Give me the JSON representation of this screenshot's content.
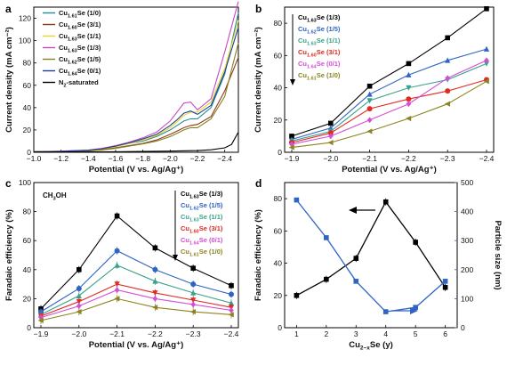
{
  "colors": {
    "black": "#000000",
    "teal": "#2a8a92",
    "darkteal": "#1f6f78",
    "blue": "#2a56b0",
    "yellow": "#e8d52c",
    "magenta": "#c948c8",
    "olive": "#8a7d1a",
    "navy": "#1a3f96",
    "lightblue": "#3f8ed0",
    "red": "#e02a22",
    "green": "#3aa28a",
    "purple": "#d44ed8",
    "khaki": "#8b8420",
    "dblue": "#2f63c4"
  },
  "chart_data": [
    {
      "panel": "a",
      "type": "line",
      "xlabel": "Potential (V vs. Ag/Ag⁺)",
      "ylabel": "Current density (mA cm⁻²)",
      "xlim": [
        -1.0,
        -2.5
      ],
      "ylim": [
        0,
        130
      ],
      "xticks": [
        "−1.0",
        "−1.2",
        "−1.4",
        "−1.6",
        "−1.8",
        "−2.0",
        "−2.2",
        "−2.4"
      ],
      "xtick_values": [
        -1.0,
        -1.2,
        -1.4,
        -1.6,
        -1.8,
        -2.0,
        -2.2,
        -2.4
      ],
      "yticks": [
        "0",
        "20",
        "40",
        "60",
        "80",
        "100",
        "120"
      ],
      "ytick_values": [
        0,
        20,
        40,
        60,
        80,
        100,
        120
      ],
      "legend": [
        {
          "base": "Cu",
          "sub": "1.61",
          "rest": "Se (1/0)",
          "color": "#2a8a92"
        },
        {
          "base": "Cu",
          "sub": "1.60",
          "rest": "Se (3/1)",
          "color": "#8a3a1a"
        },
        {
          "base": "Cu",
          "sub": "1.63",
          "rest": "Se (1/1)",
          "color": "#e8d52c"
        },
        {
          "base": "Cu",
          "sub": "1.63",
          "rest": "Se (1/3)",
          "color": "#c948c8"
        },
        {
          "base": "Cu",
          "sub": "1.62",
          "rest": "Se (1/5)",
          "color": "#8a7d1a"
        },
        {
          "base": "Cu",
          "sub": "1.64",
          "rest": "Se (0/1)",
          "color": "#1a3f96"
        },
        {
          "base": "N",
          "sub": "2",
          "rest": "-saturated",
          "color": "#000000"
        }
      ],
      "series": [
        {
          "color": "#2a8a92",
          "x": [
            -1.0,
            -1.2,
            -1.4,
            -1.5,
            -1.6,
            -1.7,
            -1.8,
            -1.9,
            -2.0,
            -2.05,
            -2.1,
            -2.15,
            -2.2,
            -2.3,
            -2.4,
            -2.5
          ],
          "y": [
            0.5,
            0.8,
            1.5,
            3,
            5,
            8,
            10,
            14,
            20,
            24,
            28,
            30,
            30,
            40,
            70,
            125
          ]
        },
        {
          "color": "#8a3a1a",
          "x": [
            -1.0,
            -1.2,
            -1.4,
            -1.5,
            -1.6,
            -1.7,
            -1.8,
            -1.9,
            -2.0,
            -2.05,
            -2.1,
            -2.15,
            -2.2,
            -2.3,
            -2.4,
            -2.5
          ],
          "y": [
            0.5,
            0.8,
            1.3,
            2.5,
            4,
            6,
            8,
            11,
            16,
            19,
            22,
            24,
            25,
            32,
            55,
            85
          ]
        },
        {
          "color": "#e8d52c",
          "x": [
            -1.0,
            -1.2,
            -1.4,
            -1.5,
            -1.6,
            -1.7,
            -1.8,
            -1.9,
            -2.0,
            -2.05,
            -2.1,
            -2.15,
            -2.2,
            -2.3,
            -2.4,
            -2.5
          ],
          "y": [
            0.5,
            0.9,
            1.7,
            3,
            5,
            8,
            11,
            15,
            22,
            27,
            33,
            36,
            36,
            45,
            75,
            118
          ]
        },
        {
          "color": "#c948c8",
          "x": [
            -1.0,
            -1.2,
            -1.4,
            -1.5,
            -1.6,
            -1.7,
            -1.8,
            -1.9,
            -2.0,
            -2.05,
            -2.1,
            -2.15,
            -2.2,
            -2.3,
            -2.4,
            -2.5
          ],
          "y": [
            0.5,
            1.0,
            2,
            3.5,
            6,
            9,
            13,
            18,
            28,
            36,
            44,
            45,
            38,
            48,
            90,
            135
          ]
        },
        {
          "color": "#8a7d1a",
          "x": [
            -1.0,
            -1.2,
            -1.4,
            -1.5,
            -1.6,
            -1.7,
            -1.8,
            -1.9,
            -2.0,
            -2.05,
            -2.1,
            -2.15,
            -2.2,
            -2.3,
            -2.4,
            -2.5
          ],
          "y": [
            0.5,
            0.7,
            1.2,
            2,
            3.5,
            5.5,
            7.5,
            10,
            14,
            17,
            20,
            22,
            22,
            30,
            50,
            98
          ]
        },
        {
          "color": "#1a3f96",
          "x": [
            -1.0,
            -1.2,
            -1.4,
            -1.5,
            -1.6,
            -1.7,
            -1.8,
            -1.9,
            -2.0,
            -2.05,
            -2.1,
            -2.15,
            -2.2,
            -2.3,
            -2.4,
            -2.5
          ],
          "y": [
            0.5,
            0.9,
            1.8,
            3.2,
            5.5,
            8.5,
            12,
            16,
            24,
            29,
            35,
            37,
            34,
            42,
            72,
            112
          ]
        },
        {
          "color": "#000000",
          "x": [
            -1.0,
            -1.2,
            -1.4,
            -1.6,
            -1.8,
            -2.0,
            -2.2,
            -2.3,
            -2.4,
            -2.45,
            -2.5
          ],
          "y": [
            0.2,
            0.3,
            0.4,
            0.5,
            0.7,
            1.0,
            1.5,
            2.2,
            4,
            7,
            18
          ]
        }
      ]
    },
    {
      "panel": "b",
      "type": "line",
      "xlabel": "Potential (V vs. Ag/Ag⁺)",
      "ylabel": "Current density (mA cm⁻²)",
      "xlim": [
        -1.9,
        -2.4
      ],
      "ylim": [
        0,
        90
      ],
      "xticks": [
        "−1.9",
        "−2.0",
        "−2.1",
        "−2.2",
        "−2.3",
        "−2.4"
      ],
      "xtick_values": [
        -1.9,
        -2.0,
        -2.1,
        -2.2,
        -2.3,
        -2.4
      ],
      "yticks": [
        "0",
        "20",
        "40",
        "60",
        "80"
      ],
      "ytick_values": [
        0,
        20,
        40,
        60,
        80
      ],
      "legend": [
        {
          "base": "Cu",
          "sub": "1.63",
          "rest": "Se (1/3)",
          "color": "#000000"
        },
        {
          "base": "Cu",
          "sub": "1.62",
          "rest": "Se (1/5)",
          "color": "#2f63c4"
        },
        {
          "base": "Cu",
          "sub": "1.63",
          "rest": "Se (1/1)",
          "color": "#3aa28a"
        },
        {
          "base": "Cu",
          "sub": "1.60",
          "rest": "Se (3/1)",
          "color": "#e02a22"
        },
        {
          "base": "Cu",
          "sub": "1.64",
          "rest": "Se (0/1)",
          "color": "#d44ed8"
        },
        {
          "base": "Cu",
          "sub": "1.61",
          "rest": "Se (1/0)",
          "color": "#8b8420"
        }
      ],
      "x": [
        -1.9,
        -2.0,
        -2.1,
        -2.2,
        -2.3,
        -2.4
      ],
      "series": [
        {
          "color": "#000000",
          "marker": "square",
          "values": [
            10,
            18,
            41,
            55,
            71,
            89
          ]
        },
        {
          "color": "#2f63c4",
          "marker": "triangle",
          "values": [
            8,
            15,
            36,
            48,
            57,
            64
          ]
        },
        {
          "color": "#3aa28a",
          "marker": "triangle-down",
          "values": [
            7,
            13,
            32,
            40,
            45,
            55
          ]
        },
        {
          "color": "#e02a22",
          "marker": "circle",
          "values": [
            6,
            12,
            27,
            33,
            38,
            45
          ]
        },
        {
          "color": "#d44ed8",
          "marker": "diamond",
          "values": [
            5,
            10,
            20,
            30,
            46,
            57
          ]
        },
        {
          "color": "#8b8420",
          "marker": "triangle-left",
          "values": [
            3,
            6,
            13,
            21,
            30,
            44
          ]
        }
      ]
    },
    {
      "panel": "c",
      "type": "line",
      "annotation": "CH₃OH",
      "xlabel": "Potential (V vs. Ag/Ag⁺)",
      "ylabel": "Faradaic efficiency (%)",
      "xlim": [
        -1.9,
        -2.4
      ],
      "ylim": [
        0,
        100
      ],
      "xticks": [
        "−1.9",
        "−2.0",
        "−2.1",
        "−2.2",
        "−2.3",
        "−2.4"
      ],
      "xtick_values": [
        -1.9,
        -2.0,
        -2.1,
        -2.2,
        -2.3,
        -2.4
      ],
      "yticks": [
        "0",
        "20",
        "40",
        "60",
        "80",
        "100"
      ],
      "ytick_values": [
        0,
        20,
        40,
        60,
        80,
        100
      ],
      "legend": [
        {
          "base": "Cu",
          "sub": "1.63",
          "rest": "Se (1/3)",
          "color": "#000000"
        },
        {
          "base": "Cu",
          "sub": "1.62",
          "rest": "Se (1/5)",
          "color": "#2f63c4"
        },
        {
          "base": "Cu",
          "sub": "1.63",
          "rest": "Se (1/1)",
          "color": "#3aa28a"
        },
        {
          "base": "Cu",
          "sub": "1.60",
          "rest": "Se (3/1)",
          "color": "#e02a22"
        },
        {
          "base": "Cu",
          "sub": "1.64",
          "rest": "Se (0/1)",
          "color": "#d44ed8"
        },
        {
          "base": "Cu",
          "sub": "1.61",
          "rest": "Se (1/0)",
          "color": "#8b8420"
        }
      ],
      "x": [
        -1.9,
        -2.0,
        -2.1,
        -2.2,
        -2.3,
        -2.4
      ],
      "series": [
        {
          "color": "#000000",
          "marker": "square",
          "values": [
            13,
            40,
            77,
            55,
            41,
            29
          ]
        },
        {
          "color": "#2f63c4",
          "marker": "circle",
          "values": [
            11,
            27,
            53,
            40,
            30,
            23
          ]
        },
        {
          "color": "#3aa28a",
          "marker": "triangle",
          "values": [
            9,
            22,
            43,
            32,
            24,
            17
          ]
        },
        {
          "color": "#e02a22",
          "marker": "triangle-down",
          "values": [
            8,
            18,
            30,
            24,
            19,
            14
          ]
        },
        {
          "color": "#d44ed8",
          "marker": "diamond",
          "values": [
            7,
            15,
            26,
            20,
            16,
            12
          ]
        },
        {
          "color": "#8b8420",
          "marker": "triangle-left",
          "values": [
            5,
            11,
            20,
            14,
            11,
            9
          ]
        }
      ]
    },
    {
      "panel": "d",
      "type": "line",
      "xlabel": "Cu",
      "xlabel_sub": "2−x",
      "xlabel_rest": "Se (y)",
      "ylabel": "Faradaic efficiency (%)",
      "ylabel_right": "Particle size (nm)",
      "xlim": [
        0.6,
        6.4
      ],
      "ylim": [
        0,
        90
      ],
      "ylim_right": [
        0,
        500
      ],
      "xticks": [
        "1",
        "2",
        "3",
        "4",
        "5",
        "6"
      ],
      "xtick_values": [
        1,
        2,
        3,
        4,
        5,
        6
      ],
      "yticks": [
        "0",
        "20",
        "40",
        "60",
        "80"
      ],
      "ytick_values": [
        0,
        20,
        40,
        60,
        80
      ],
      "yticks_right": [
        "0",
        "100",
        "200",
        "300",
        "400",
        "500"
      ],
      "ytick_right_values": [
        0,
        100,
        200,
        300,
        400,
        500
      ],
      "series": [
        {
          "axis": "left",
          "color": "#000000",
          "marker": "square",
          "x": [
            1,
            2,
            3,
            4,
            5,
            6
          ],
          "values": [
            20,
            30,
            43,
            78,
            53,
            25
          ]
        },
        {
          "axis": "right",
          "color": "#2f63c4",
          "marker": "square",
          "x": [
            1,
            2,
            3,
            4,
            5,
            6
          ],
          "values": [
            440,
            310,
            160,
            55,
            70,
            160
          ]
        }
      ]
    }
  ]
}
